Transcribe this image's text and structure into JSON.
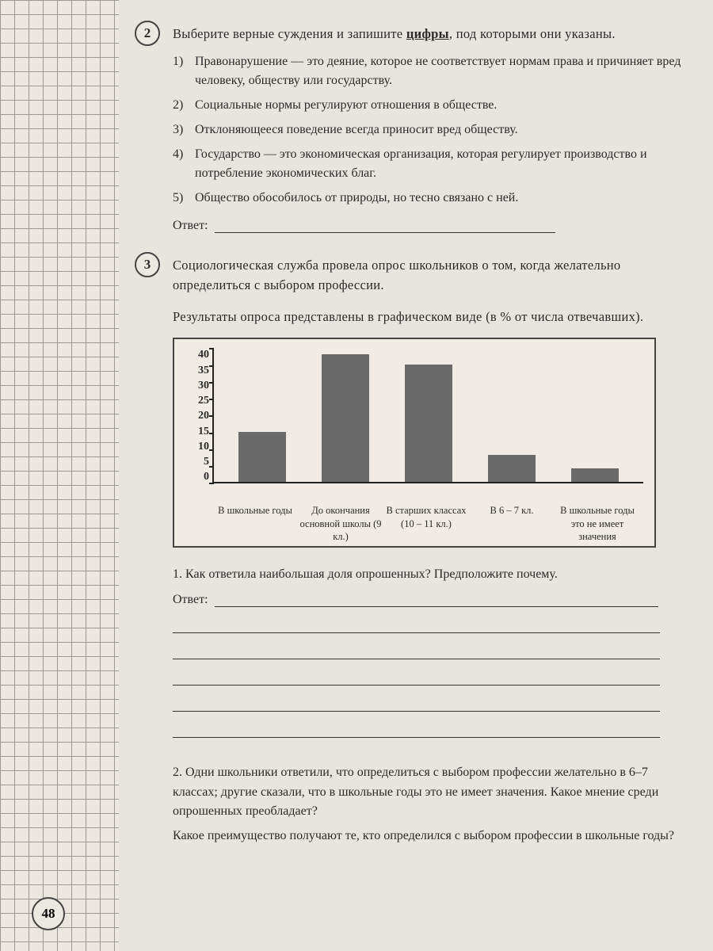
{
  "page_number": "48",
  "question2": {
    "number": "2",
    "prompt_pre": "Выберите верные суждения и запишите ",
    "prompt_bold": "цифры",
    "prompt_post": ", под которыми они указаны.",
    "options": [
      {
        "n": "1)",
        "text": "Правонарушение — это деяние, которое не соответствует нормам права и причиняет вред человеку, обществу или государству."
      },
      {
        "n": "2)",
        "text": "Социальные нормы регулируют отношения в обществе."
      },
      {
        "n": "3)",
        "text": "Отклоняющееся поведение всегда приносит вред обществу."
      },
      {
        "n": "4)",
        "text": "Государство — это экономическая организация, которая регулирует производство и потребление экономических благ."
      },
      {
        "n": "5)",
        "text": "Общество обособилось от природы, но тесно связано с ней."
      }
    ],
    "answer_label": "Ответ:"
  },
  "question3": {
    "number": "3",
    "prompt": "Социологическая служба провела опрос школьников о том, когда желательно определиться с выбором профессии.",
    "subtitle": "Результаты опроса представлены в графическом виде (в % от числа отвечавших).",
    "chart": {
      "type": "bar",
      "ylim": [
        0,
        40
      ],
      "ytick_step": 5,
      "yticks": [
        "40",
        "35",
        "30",
        "25",
        "20",
        "15",
        "10",
        "5",
        "0"
      ],
      "categories": [
        "В школьные годы",
        "До окончания основной школы (9 кл.)",
        "В старших классах (10 – 11 кл.)",
        "В 6 – 7 кл.",
        "В школьные годы это не имеет значения"
      ],
      "values": [
        15,
        38,
        35,
        8,
        4
      ],
      "bar_color": "#6a6a6a",
      "background_color": "#f0ece5",
      "border_color": "#444444",
      "axis_color": "#222222",
      "label_fontsize": 12.5,
      "ytick_fontsize": 14
    },
    "sub1": "1. Как ответила наибольшая доля опрошенных? Предположите почему.",
    "answer_label": "Ответ:",
    "sub2_line1": "2. Одни школьники ответили, что определиться с выбором профессии желательно в 6–7 классах; другие сказали, что в школьные годы это не имеет значения. Какое мнение среди опрошенных преобладает?",
    "sub2_line2": "Какое преимущество получают те, кто определился с выбором профессии в школьные годы?"
  }
}
